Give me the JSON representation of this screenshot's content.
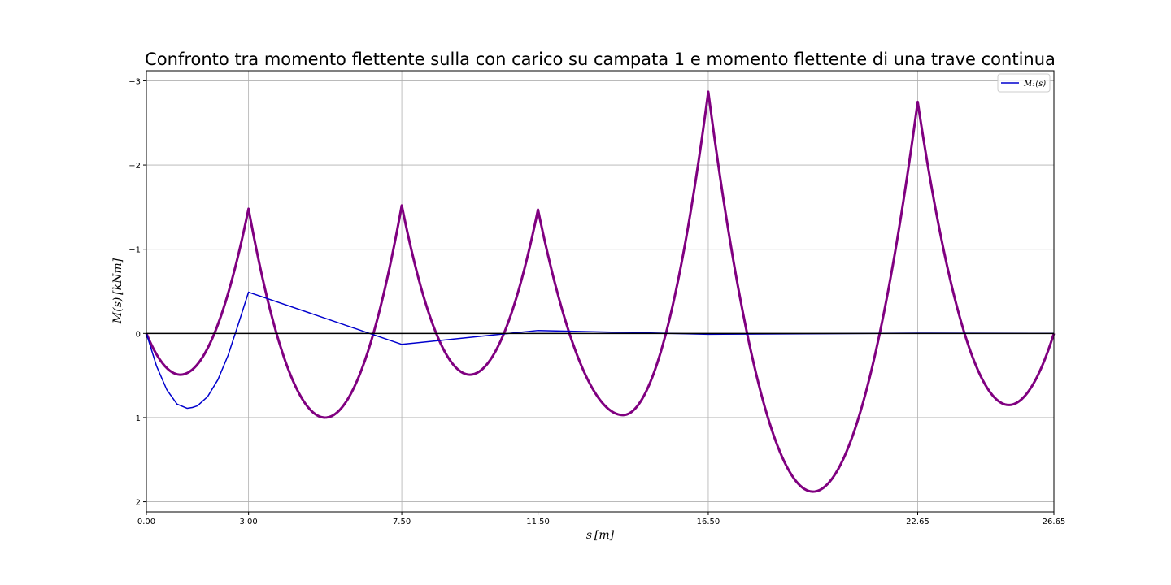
{
  "chart_data": {
    "type": "line",
    "title": "Confronto tra momento flettente sulla con carico su campata 1 e momento flettente di una trave continua",
    "xlabel": "s [m]",
    "ylabel": "M(s) [kNm]",
    "xlim": [
      0,
      26.65
    ],
    "ylim": [
      2.12,
      -3.12
    ],
    "y_inverted": true,
    "grid": true,
    "legend_position": "upper right",
    "x_ticks": [
      0,
      3,
      7.5,
      11.5,
      16.5,
      22.65,
      26.65
    ],
    "x_tick_labels": [
      "0.00",
      "3.00",
      "7.50",
      "11.50",
      "16.50",
      "22.65",
      "26.65"
    ],
    "y_ticks": [
      -3,
      -2,
      -1,
      0,
      1,
      2
    ],
    "y_tick_labels": [
      "−3",
      "−2",
      "−1",
      "0",
      "1",
      "2"
    ],
    "supports": [
      0,
      3,
      7.5,
      11.5,
      16.5,
      22.65,
      26.65
    ],
    "colors": {
      "series_1": "#0000cd",
      "envelope": "#800080",
      "baseline": "#000000",
      "grid": "#b0b0b0"
    },
    "series": [
      {
        "name": "M₁(s)",
        "in_legend": true,
        "color": "#0000cd",
        "x": [
          0,
          0.3,
          0.6,
          0.9,
          1.2,
          1.35,
          1.5,
          1.8,
          2.1,
          2.4,
          2.7,
          3.0,
          7.5,
          11.5,
          16.5,
          22.65,
          26.65
        ],
        "y": [
          0,
          0.39,
          0.67,
          0.84,
          0.89,
          0.88,
          0.86,
          0.75,
          0.55,
          0.26,
          -0.11,
          -0.49,
          0.13,
          -0.035,
          0.01,
          -0.003,
          0
        ]
      },
      {
        "name": "",
        "in_legend": false,
        "color": "#800080",
        "x": [
          0,
          1.0,
          3.0,
          5.25,
          7.5,
          9.5,
          11.5,
          14.0,
          16.5,
          19.575,
          22.65,
          25.325,
          26.65
        ],
        "y": [
          0,
          0.49,
          -1.48,
          1.0,
          -1.52,
          0.49,
          -1.47,
          0.97,
          -2.87,
          1.88,
          -2.75,
          0.85,
          0
        ]
      }
    ]
  }
}
